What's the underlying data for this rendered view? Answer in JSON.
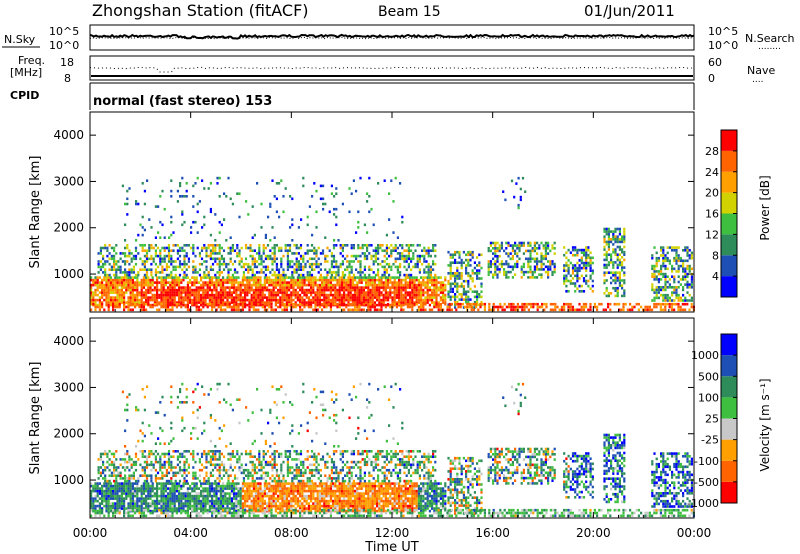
{
  "header": {
    "station": "Zhongshan Station (fitACF)",
    "beam": "Beam 15",
    "date": "01/Jun/2011"
  },
  "noise_panel": {
    "left_label": "N.Sky",
    "right_label": "N.Search",
    "right_legend": "........",
    "left_ticks": [
      "10^5",
      "10^0"
    ],
    "right_ticks": [
      "10^5",
      "10^0"
    ]
  },
  "freq_panel": {
    "left_label_1": "Freq.",
    "left_label_2": "[MHz]",
    "right_label": "Nave",
    "right_legend": "....",
    "left_ticks": [
      "18",
      "8"
    ],
    "right_ticks": [
      "60",
      "0"
    ]
  },
  "cpid_panel": {
    "label": "CPID",
    "text": "normal (fast stereo) 153"
  },
  "x_axis": {
    "title": "Time UT",
    "ticks": [
      "00:00",
      "04:00",
      "08:00",
      "12:00",
      "16:00",
      "20:00",
      "00:00"
    ]
  },
  "colors": {
    "power_scale": [
      "#0000ff",
      "#1e4fb4",
      "#2d8c5a",
      "#3fbf3f",
      "#d2d200",
      "#ffa000",
      "#ff6400",
      "#ff0000"
    ],
    "velocity_scale": [
      "#ff0000",
      "#ff6400",
      "#ffa000",
      "#c8c8c8",
      "#3fbf3f",
      "#2d8c5a",
      "#1e4fb4",
      "#0000ff"
    ]
  },
  "chart_data": [
    {
      "type": "heatmap",
      "panel": "power",
      "ylabel": "Slant Range [km]",
      "y_ticks": [
        "1000",
        "2000",
        "3000",
        "4000"
      ],
      "ylim": [
        180,
        4500
      ],
      "xlim": [
        "00:00",
        "24:00"
      ],
      "colorbar": {
        "label": "Power [dB]",
        "ticks": [
          "4",
          "8",
          "12",
          "16",
          "20",
          "24",
          "28"
        ],
        "range": [
          0,
          32
        ]
      }
    },
    {
      "type": "heatmap",
      "panel": "velocity",
      "ylabel": "Slant Range [km]",
      "y_ticks": [
        "1000",
        "2000",
        "3000",
        "4000"
      ],
      "ylim": [
        180,
        4500
      ],
      "xlim": [
        "00:00",
        "24:00"
      ],
      "colorbar": {
        "label": "Velocity [m s⁻¹]",
        "ticks": [
          "1000",
          "500",
          "100",
          "25",
          "-25",
          "-100",
          "-500",
          "-1000"
        ]
      }
    }
  ]
}
